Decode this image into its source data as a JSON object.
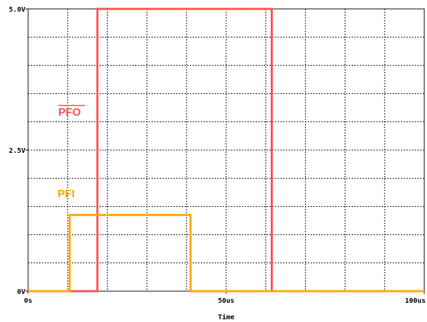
{
  "chart_data": {
    "type": "line",
    "xlabel": "Time",
    "ylabel": "",
    "xlim": [
      0,
      100
    ],
    "ylim": [
      0,
      5
    ],
    "grid": true,
    "x_ticks": [
      {
        "value": 0,
        "label": "0s"
      },
      {
        "value": 50,
        "label": "50us"
      },
      {
        "value": 100,
        "label": "100us"
      }
    ],
    "y_ticks": [
      {
        "value": 0,
        "label": "0V"
      },
      {
        "value": 2.5,
        "label": "2.5V"
      },
      {
        "value": 5,
        "label": "5.0V"
      }
    ],
    "series": [
      {
        "name": "PFO",
        "name_overline": true,
        "color": "#ff4f4f",
        "points": [
          [
            0,
            0
          ],
          [
            17.5,
            0
          ],
          [
            17.5,
            5
          ],
          [
            61.5,
            5
          ],
          [
            61.5,
            0
          ],
          [
            100,
            0
          ]
        ]
      },
      {
        "name": "PFI",
        "name_overline": false,
        "color": "#ffa500",
        "points": [
          [
            0,
            0
          ],
          [
            10.5,
            0
          ],
          [
            10.5,
            1.35
          ],
          [
            41,
            1.35
          ],
          [
            41,
            0
          ],
          [
            100,
            0
          ]
        ]
      }
    ]
  }
}
